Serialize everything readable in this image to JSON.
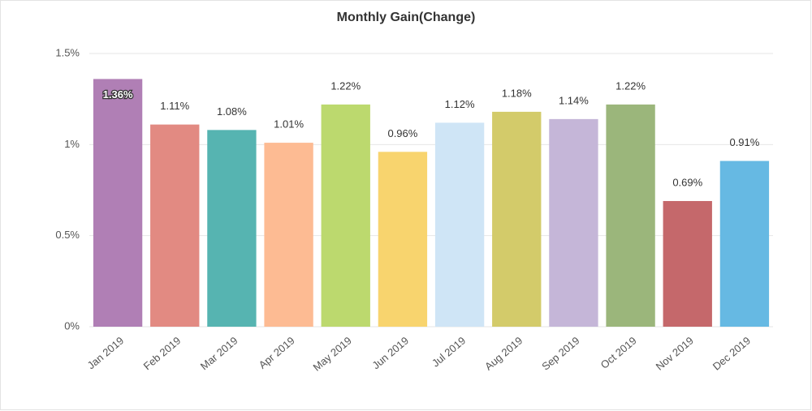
{
  "chart_data": {
    "type": "bar",
    "title": "Monthly Gain(Change)",
    "categories": [
      "Jan 2019",
      "Feb 2019",
      "Mar 2019",
      "Apr 2019",
      "May 2019",
      "Jun 2019",
      "Jul 2019",
      "Aug 2019",
      "Sep 2019",
      "Oct 2019",
      "Nov 2019",
      "Dec 2019"
    ],
    "values": [
      1.36,
      1.11,
      1.08,
      1.01,
      1.22,
      0.96,
      1.12,
      1.18,
      1.14,
      1.22,
      0.69,
      0.91
    ],
    "value_labels": [
      "1.36%",
      "1.11%",
      "1.08%",
      "1.01%",
      "1.22%",
      "0.96%",
      "1.12%",
      "1.18%",
      "1.14%",
      "1.22%",
      "0.69%",
      "0.91%"
    ],
    "colors": [
      "#b07fb5",
      "#e28a82",
      "#56b4b1",
      "#fdbb93",
      "#bcd96e",
      "#f8d46e",
      "#cfe5f6",
      "#d3cb6a",
      "#c5b6d8",
      "#9bb67b",
      "#c5686b",
      "#66b9e3"
    ],
    "ylim": [
      0,
      1.5
    ],
    "yticks": [
      {
        "value": 0,
        "label": "0%"
      },
      {
        "value": 0.5,
        "label": "0.5%"
      },
      {
        "value": 1,
        "label": "1%"
      },
      {
        "value": 1.5,
        "label": "1.5%"
      }
    ],
    "grid": true
  }
}
